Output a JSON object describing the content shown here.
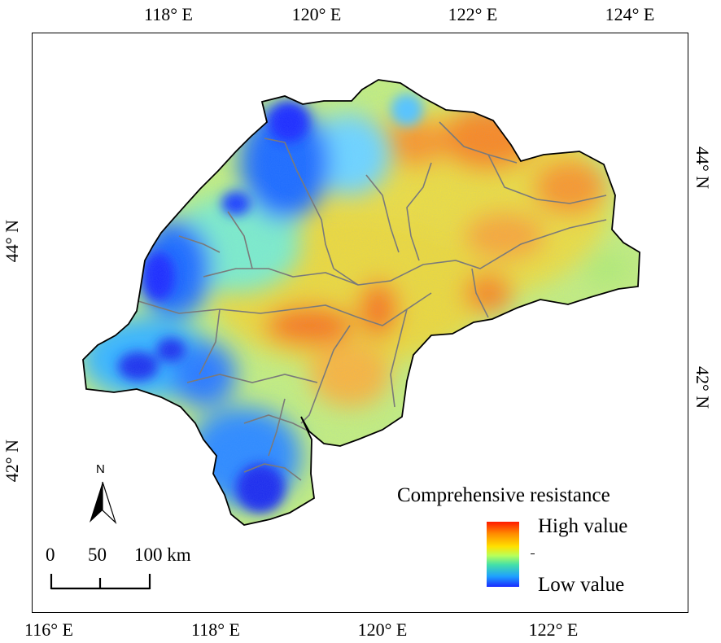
{
  "top_axis": [
    "118° E",
    "120° E",
    "122° E",
    "124° E"
  ],
  "bottom_axis": [
    "116° E",
    "118° E",
    "120° E",
    "122° E"
  ],
  "left_axis": [
    "44° N",
    "42° N"
  ],
  "right_axis": [
    "44° N",
    "42° N"
  ],
  "legend": {
    "title": "Comprehensive resistance",
    "high": "High value",
    "low": "Low value",
    "colors": [
      "#ff1a00",
      "#ff8a00",
      "#ffe000",
      "#b8ff5a",
      "#44e0a8",
      "#1ea0ff",
      "#1a2cff"
    ]
  },
  "scale_bar": {
    "labels": [
      "0",
      "50",
      "100 km"
    ]
  },
  "north_arrow": {
    "label": "N"
  }
}
